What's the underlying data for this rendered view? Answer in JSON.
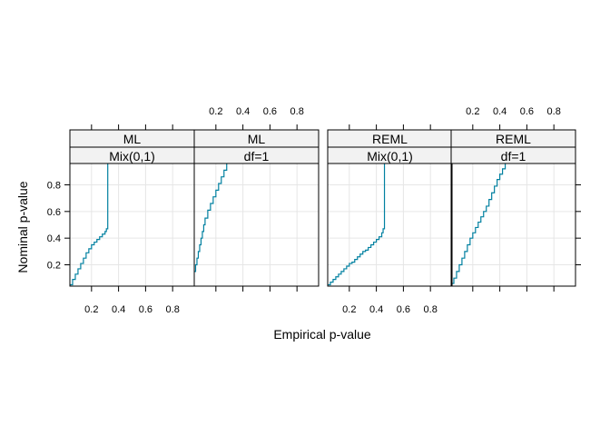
{
  "colors": {
    "line": "#0080A0",
    "strip": "#F2F2F2",
    "grid": "#E6E6E6",
    "border": "#000000"
  },
  "chart_data": {
    "type": "line",
    "subtype": "step",
    "xlabel": "Empirical p-value",
    "ylabel": "Nominal p-value",
    "xlim": [
      0.04,
      0.96
    ],
    "ylim": [
      0.04,
      0.96
    ],
    "x_ticks": [
      0.2,
      0.4,
      0.6,
      0.8
    ],
    "y_ticks": [
      0.2,
      0.4,
      0.6,
      0.8
    ],
    "grid": true,
    "layout": "1 row x 2 groups x 2 panels (trellis)",
    "panels": [
      {
        "strip_top": "ML",
        "strip_bottom": "Mix(0,1)",
        "series": {
          "x": [
            0.04,
            0.06,
            0.08,
            0.1,
            0.12,
            0.14,
            0.16,
            0.18,
            0.2,
            0.22,
            0.24,
            0.26,
            0.28,
            0.3,
            0.31,
            0.32,
            0.32,
            0.32
          ],
          "y": [
            0.05,
            0.09,
            0.13,
            0.17,
            0.21,
            0.25,
            0.29,
            0.32,
            0.35,
            0.37,
            0.39,
            0.41,
            0.43,
            0.45,
            0.47,
            0.5,
            0.75,
            0.96
          ]
        }
      },
      {
        "strip_top": "ML",
        "strip_bottom": "df=1",
        "series": {
          "x": [
            0.04,
            0.05,
            0.06,
            0.07,
            0.08,
            0.09,
            0.1,
            0.11,
            0.12,
            0.14,
            0.16,
            0.18,
            0.2,
            0.22,
            0.24,
            0.26,
            0.28
          ],
          "y": [
            0.15,
            0.2,
            0.25,
            0.3,
            0.35,
            0.4,
            0.45,
            0.5,
            0.55,
            0.61,
            0.66,
            0.71,
            0.76,
            0.81,
            0.86,
            0.91,
            0.96
          ]
        }
      },
      {
        "strip_top": "REML",
        "strip_bottom": "Mix(0,1)",
        "series": {
          "x": [
            0.04,
            0.06,
            0.08,
            0.1,
            0.12,
            0.14,
            0.16,
            0.18,
            0.2,
            0.22,
            0.24,
            0.26,
            0.28,
            0.3,
            0.32,
            0.34,
            0.36,
            0.38,
            0.4,
            0.42,
            0.44,
            0.45,
            0.46,
            0.46,
            0.46
          ],
          "y": [
            0.05,
            0.07,
            0.09,
            0.11,
            0.13,
            0.15,
            0.17,
            0.19,
            0.21,
            0.22,
            0.24,
            0.26,
            0.28,
            0.3,
            0.31,
            0.33,
            0.35,
            0.37,
            0.39,
            0.41,
            0.44,
            0.47,
            0.5,
            0.75,
            0.96
          ]
        }
      },
      {
        "strip_top": "REML",
        "strip_bottom": "df=1",
        "series": {
          "x": [
            0.04,
            0.06,
            0.08,
            0.1,
            0.12,
            0.14,
            0.16,
            0.18,
            0.2,
            0.22,
            0.24,
            0.26,
            0.28,
            0.3,
            0.32,
            0.34,
            0.36,
            0.38,
            0.4,
            0.42,
            0.44
          ],
          "y": [
            0.06,
            0.1,
            0.15,
            0.2,
            0.25,
            0.3,
            0.35,
            0.4,
            0.44,
            0.48,
            0.52,
            0.56,
            0.6,
            0.64,
            0.69,
            0.74,
            0.79,
            0.84,
            0.88,
            0.92,
            0.96
          ]
        }
      }
    ]
  }
}
